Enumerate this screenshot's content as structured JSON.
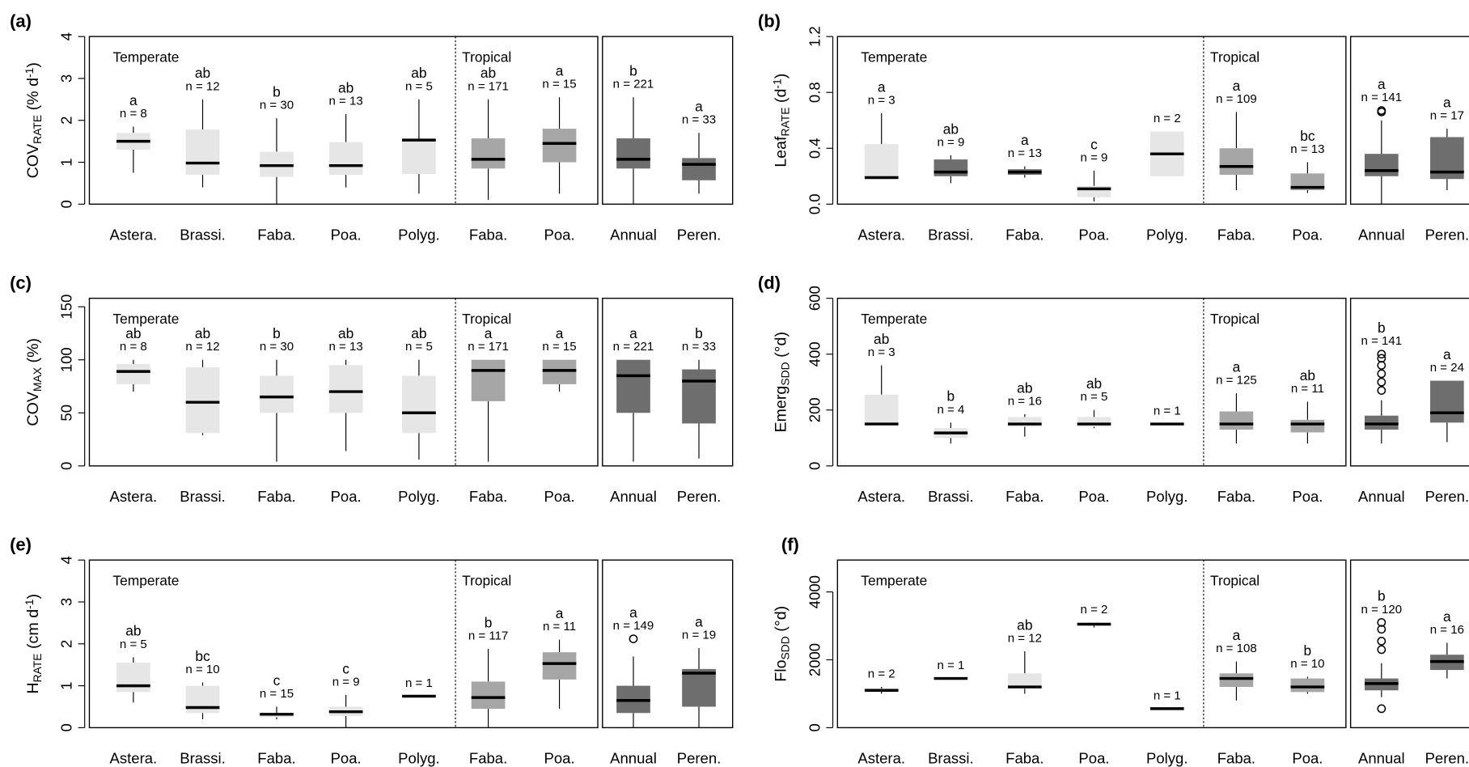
{
  "chart_data": [
    {
      "type": "box",
      "title": "(a)",
      "ylabel_parts": [
        {
          "text": "COV"
        },
        {
          "text": "RATE",
          "baseline": "sub"
        },
        {
          "text": " (% d"
        },
        {
          "text": "-1",
          "baseline": "super"
        },
        {
          "text": ")"
        }
      ],
      "group_labels": [
        "Temperate",
        "Tropical"
      ],
      "categories": [
        "Astera.",
        "Brassi.",
        "Faba.",
        "Poa.",
        "Polyg.",
        "Faba.",
        "Poa.",
        "Annual",
        "Peren."
      ],
      "colors": [
        "#e6e6e6",
        "#e6e6e6",
        "#e6e6e6",
        "#e6e6e6",
        "#e6e6e6",
        "#a6a6a6",
        "#a6a6a6",
        "#6e6e6e",
        "#6e6e6e"
      ],
      "ylim": [
        0,
        4
      ],
      "yticks": [
        0,
        1,
        2,
        3,
        4
      ],
      "boxes": [
        {
          "whislo": 0.75,
          "q1": 1.3,
          "med": 1.5,
          "q3": 1.7,
          "whishi": 1.85,
          "letter": "a",
          "n": "n = 8"
        },
        {
          "whislo": 0.4,
          "q1": 0.7,
          "med": 0.98,
          "q3": 1.78,
          "whishi": 2.5,
          "letter": "ab",
          "n": "n = 12"
        },
        {
          "whislo": 0,
          "q1": 0.65,
          "med": 0.92,
          "q3": 1.25,
          "whishi": 2.05,
          "letter": "b",
          "n": "n = 30"
        },
        {
          "whislo": 0.4,
          "q1": 0.7,
          "med": 0.92,
          "q3": 1.48,
          "whishi": 2.15,
          "letter": "ab",
          "n": "n = 13"
        },
        {
          "whislo": 0.25,
          "q1": 0.72,
          "med": 1.53,
          "q3": 1.55,
          "whishi": 2.5,
          "letter": "ab",
          "n": "n = 5"
        },
        {
          "whislo": 0.1,
          "q1": 0.85,
          "med": 1.07,
          "q3": 1.57,
          "whishi": 2.5,
          "letter": "ab",
          "n": "n = 171"
        },
        {
          "whislo": 0.25,
          "q1": 1.0,
          "med": 1.45,
          "q3": 1.8,
          "whishi": 2.55,
          "letter": "a",
          "n": "n = 15"
        },
        {
          "whislo": 0,
          "q1": 0.85,
          "med": 1.07,
          "q3": 1.57,
          "whishi": 2.55,
          "letter": "b",
          "n": "n = 221"
        },
        {
          "whislo": 0.25,
          "q1": 0.57,
          "med": 0.95,
          "q3": 1.1,
          "whishi": 1.7,
          "letter": "a",
          "n": "n = 33"
        }
      ]
    },
    {
      "type": "box",
      "title": "(b)",
      "ylabel_parts": [
        {
          "text": "Leaf"
        },
        {
          "text": "RATE",
          "baseline": "sub"
        },
        {
          "text": " (d"
        },
        {
          "text": "-1",
          "baseline": "super"
        },
        {
          "text": ")"
        }
      ],
      "group_labels": [
        "Temperate",
        "Tropical"
      ],
      "categories": [
        "Astera.",
        "Brassi.",
        "Faba.",
        "Poa.",
        "Polyg.",
        "Faba.",
        "Poa.",
        "Annual",
        "Peren."
      ],
      "colors": [
        "#e6e6e6",
        "#6e6e6e",
        "#6e6e6e",
        "#e6e6e6",
        "#e6e6e6",
        "#a6a6a6",
        "#a6a6a6",
        "#6e6e6e",
        "#6e6e6e"
      ],
      "ylim": [
        0,
        1.2
      ],
      "yticks": [
        {
          "value": 0,
          "label": "0.0"
        },
        {
          "value": 0.4,
          "label": "0.4"
        },
        {
          "value": 0.8,
          "label": "0.8"
        },
        {
          "value": 1.2,
          "label": "1.2"
        }
      ],
      "boxes": [
        {
          "whislo": 0.19,
          "q1": 0.19,
          "med": 0.19,
          "q3": 0.43,
          "whishi": 0.65,
          "letter": "a",
          "n": "n = 3"
        },
        {
          "whislo": 0.15,
          "q1": 0.2,
          "med": 0.23,
          "q3": 0.32,
          "whishi": 0.35,
          "letter": "ab",
          "n": "n = 9"
        },
        {
          "whislo": 0.19,
          "q1": 0.21,
          "med": 0.23,
          "q3": 0.25,
          "whishi": 0.27,
          "letter": "a",
          "n": "n = 13"
        },
        {
          "whislo": 0.02,
          "q1": 0.05,
          "med": 0.11,
          "q3": 0.13,
          "whishi": 0.24,
          "letter": "c",
          "n": "n = 9"
        },
        {
          "whislo": 0.2,
          "q1": 0.2,
          "med": 0.36,
          "q3": 0.52,
          "whishi": 0.52,
          "n": "n = 2"
        },
        {
          "whislo": 0.1,
          "q1": 0.21,
          "med": 0.27,
          "q3": 0.4,
          "whishi": 0.66,
          "letter": "a",
          "n": "n = 109"
        },
        {
          "whislo": 0.08,
          "q1": 0.1,
          "med": 0.12,
          "q3": 0.22,
          "whishi": 0.3,
          "letter": "bc",
          "n": "n = 13"
        },
        {
          "whislo": 0,
          "q1": 0.2,
          "med": 0.24,
          "q3": 0.36,
          "whishi": 0.6,
          "fliers": [
            0.66,
            0.67
          ],
          "letter": "a",
          "n": "n = 141"
        },
        {
          "whislo": 0.1,
          "q1": 0.18,
          "med": 0.23,
          "q3": 0.48,
          "whishi": 0.54,
          "letter": "a",
          "n": "n = 17"
        }
      ]
    },
    {
      "type": "box",
      "title": "(c)",
      "ylabel_parts": [
        {
          "text": "COV"
        },
        {
          "text": "MAX",
          "baseline": "sub"
        },
        {
          "text": " (%)"
        }
      ],
      "group_labels": [
        "Temperate",
        "Tropical"
      ],
      "categories": [
        "Astera.",
        "Brassi.",
        "Faba.",
        "Poa.",
        "Polyg.",
        "Faba.",
        "Poa.",
        "Annual",
        "Peren."
      ],
      "colors": [
        "#e6e6e6",
        "#e6e6e6",
        "#e6e6e6",
        "#e6e6e6",
        "#e6e6e6",
        "#a6a6a6",
        "#a6a6a6",
        "#6e6e6e",
        "#6e6e6e"
      ],
      "ylim": [
        0,
        158
      ],
      "yticks": [
        0,
        50,
        100,
        150
      ],
      "boxes": [
        {
          "whislo": 70,
          "q1": 77,
          "med": 89,
          "q3": 96,
          "whishi": 100,
          "letter": "ab",
          "n": "n = 8"
        },
        {
          "whislo": 29,
          "q1": 31,
          "med": 60,
          "q3": 93,
          "whishi": 100,
          "letter": "ab",
          "n": "n = 12"
        },
        {
          "whislo": 4,
          "q1": 50,
          "med": 65,
          "q3": 85,
          "whishi": 100,
          "letter": "b",
          "n": "n = 30"
        },
        {
          "whislo": 14,
          "q1": 50,
          "med": 70,
          "q3": 95,
          "whishi": 100,
          "letter": "ab",
          "n": "n = 13"
        },
        {
          "whislo": 6,
          "q1": 31,
          "med": 50,
          "q3": 85,
          "whishi": 100,
          "letter": "ab",
          "n": "n = 5"
        },
        {
          "whislo": 4,
          "q1": 61,
          "med": 90,
          "q3": 100,
          "whishi": 100,
          "letter": "a",
          "n": "n = 171"
        },
        {
          "whislo": 70,
          "q1": 77,
          "med": 90,
          "q3": 100,
          "whishi": 100,
          "letter": "a",
          "n": "n = 15"
        },
        {
          "whislo": 4,
          "q1": 50,
          "med": 85,
          "q3": 100,
          "whishi": 100,
          "letter": "a",
          "n": "n = 221"
        },
        {
          "whislo": 7,
          "q1": 40,
          "med": 80,
          "q3": 91,
          "whishi": 100,
          "letter": "b",
          "n": "n = 33"
        }
      ]
    },
    {
      "type": "box",
      "title": "(d)",
      "ylabel_parts": [
        {
          "text": "Emerg"
        },
        {
          "text": "SDD",
          "baseline": "sub"
        },
        {
          "text": " (°d)"
        }
      ],
      "group_labels": [
        "Temperate",
        "Tropical"
      ],
      "categories": [
        "Astera.",
        "Brassi.",
        "Faba.",
        "Poa.",
        "Polyg.",
        "Faba.",
        "Poa.",
        "Annual",
        "Peren."
      ],
      "colors": [
        "#e6e6e6",
        "#e6e6e6",
        "#e6e6e6",
        "#e6e6e6",
        "#e6e6e6",
        "#a6a6a6",
        "#a6a6a6",
        "#6e6e6e",
        "#6e6e6e"
      ],
      "ylim": [
        0,
        600
      ],
      "yticks": [
        0,
        200,
        400,
        600
      ],
      "boxes": [
        {
          "whislo": 150,
          "q1": 150,
          "med": 150,
          "q3": 255,
          "whishi": 360,
          "letter": "ab",
          "n": "n = 3"
        },
        {
          "whislo": 80,
          "q1": 100,
          "med": 118,
          "q3": 135,
          "whishi": 155,
          "letter": "b",
          "n": "n = 4"
        },
        {
          "whislo": 105,
          "q1": 140,
          "med": 150,
          "q3": 175,
          "whishi": 185,
          "letter": "ab",
          "n": "n = 16"
        },
        {
          "whislo": 135,
          "q1": 140,
          "med": 150,
          "q3": 175,
          "whishi": 200,
          "letter": "ab",
          "n": "n = 5"
        },
        {
          "whislo": 150,
          "q1": 150,
          "med": 150,
          "q3": 150,
          "whishi": 150,
          "n": "n = 1"
        },
        {
          "whislo": 80,
          "q1": 130,
          "med": 150,
          "q3": 195,
          "whishi": 260,
          "letter": "a",
          "n": "n = 125"
        },
        {
          "whislo": 80,
          "q1": 120,
          "med": 150,
          "q3": 165,
          "whishi": 230,
          "letter": "ab",
          "n": "n = 11"
        },
        {
          "whislo": 80,
          "q1": 130,
          "med": 150,
          "q3": 180,
          "whishi": 235,
          "fliers": [
            270,
            300,
            330,
            360,
            385,
            400
          ],
          "letter": "b",
          "n": "n = 141"
        },
        {
          "whislo": 85,
          "q1": 155,
          "med": 190,
          "q3": 305,
          "whishi": 305,
          "letter": "a",
          "n": "n = 24"
        }
      ]
    },
    {
      "type": "box",
      "title": "(e)",
      "ylabel_parts": [
        {
          "text": "H"
        },
        {
          "text": "RATE",
          "baseline": "sub"
        },
        {
          "text": " (cm d"
        },
        {
          "text": "-1",
          "baseline": "super"
        },
        {
          "text": ")"
        }
      ],
      "group_labels": [
        "Temperate",
        "Tropical"
      ],
      "categories": [
        "Astera.",
        "Brassi.",
        "Faba.",
        "Poa.",
        "Polyg.",
        "Faba.",
        "Poa.",
        "Annual",
        "Peren."
      ],
      "colors": [
        "#e6e6e6",
        "#e6e6e6",
        "#e6e6e6",
        "#e6e6e6",
        "#e6e6e6",
        "#a6a6a6",
        "#a6a6a6",
        "#6e6e6e",
        "#6e6e6e"
      ],
      "ylim": [
        0,
        4
      ],
      "yticks": [
        0,
        1,
        2,
        3,
        4
      ],
      "boxes": [
        {
          "whislo": 0.6,
          "q1": 0.85,
          "med": 1.0,
          "q3": 1.55,
          "whishi": 1.68,
          "letter": "ab",
          "n": "n = 5"
        },
        {
          "whislo": 0.2,
          "q1": 0.35,
          "med": 0.48,
          "q3": 1.0,
          "whishi": 1.08,
          "letter": "bc",
          "n": "n = 10"
        },
        {
          "whislo": 0.2,
          "q1": 0.25,
          "med": 0.32,
          "q3": 0.35,
          "whishi": 0.5,
          "letter": "c",
          "n": "n = 15"
        },
        {
          "whislo": 0,
          "q1": 0.28,
          "med": 0.38,
          "q3": 0.5,
          "whishi": 0.78,
          "letter": "c",
          "n": "n = 9"
        },
        {
          "whislo": 0.75,
          "q1": 0.75,
          "med": 0.75,
          "q3": 0.75,
          "whishi": 0.75,
          "n": "n = 1"
        },
        {
          "whislo": 0,
          "q1": 0.45,
          "med": 0.72,
          "q3": 1.1,
          "whishi": 1.88,
          "letter": "b",
          "n": "n = 117"
        },
        {
          "whislo": 0.45,
          "q1": 1.15,
          "med": 1.53,
          "q3": 1.8,
          "whishi": 2.1,
          "letter": "a",
          "n": "n = 11"
        },
        {
          "whislo": 0,
          "q1": 0.35,
          "med": 0.65,
          "q3": 1.0,
          "whishi": 1.7,
          "fliers": [
            2.12
          ],
          "letter": "a",
          "n": "n = 149"
        },
        {
          "whislo": 0,
          "q1": 0.5,
          "med": 1.3,
          "q3": 1.4,
          "whishi": 1.9,
          "letter": "a",
          "n": "n = 19"
        }
      ]
    },
    {
      "type": "box",
      "title": "(f)",
      "ylabel_parts": [
        {
          "text": "Flo"
        },
        {
          "text": "SDD",
          "baseline": "sub"
        },
        {
          "text": " (°d)"
        }
      ],
      "group_labels": [
        "Temperate",
        "Tropical"
      ],
      "categories": [
        "Astera.",
        "Brassi.",
        "Faba.",
        "Poa.",
        "Polyg.",
        "Faba.",
        "Poa.",
        "Annual",
        "Peren."
      ],
      "colors": [
        "#e6e6e6",
        "#e6e6e6",
        "#e6e6e6",
        "#e6e6e6",
        "#e6e6e6",
        "#a6a6a6",
        "#a6a6a6",
        "#6e6e6e",
        "#6e6e6e"
      ],
      "ylim": [
        0,
        4940
      ],
      "yticks": [
        0,
        2000,
        4000
      ],
      "boxes": [
        {
          "whislo": 1000,
          "q1": 1100,
          "med": 1100,
          "q3": 1150,
          "whishi": 1200,
          "n": "n = 2"
        },
        {
          "whislo": 1450,
          "q1": 1450,
          "med": 1450,
          "q3": 1450,
          "whishi": 1450,
          "n": "n = 1"
        },
        {
          "whislo": 1000,
          "q1": 1150,
          "med": 1200,
          "q3": 1600,
          "whishi": 2250,
          "letter": "ab",
          "n": "n = 12"
        },
        {
          "whislo": 2950,
          "q1": 3050,
          "med": 3050,
          "q3": 3100,
          "whishi": 3100,
          "n": "n = 2"
        },
        {
          "whislo": 560,
          "q1": 560,
          "med": 560,
          "q3": 560,
          "whishi": 560,
          "n": "n = 1"
        },
        {
          "whislo": 800,
          "q1": 1200,
          "med": 1450,
          "q3": 1600,
          "whishi": 1950,
          "letter": "a",
          "n": "n = 108"
        },
        {
          "whislo": 1000,
          "q1": 1050,
          "med": 1200,
          "q3": 1450,
          "whishi": 1500,
          "letter": "b",
          "n": "n = 10"
        },
        {
          "whislo": 900,
          "q1": 1100,
          "med": 1300,
          "q3": 1450,
          "whishi": 1900,
          "fliers": [
            560,
            2300,
            2550,
            2900,
            3100
          ],
          "letter": "b",
          "n": "n = 120"
        },
        {
          "whislo": 1450,
          "q1": 1700,
          "med": 1950,
          "q3": 2150,
          "whishi": 2500,
          "letter": "a",
          "n": "n = 16"
        }
      ]
    }
  ]
}
